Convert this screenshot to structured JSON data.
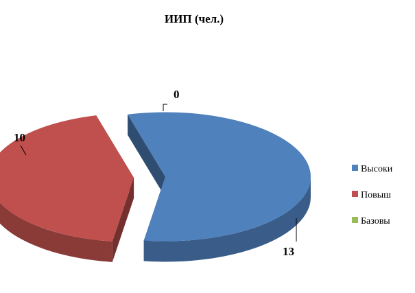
{
  "chart_data": {
    "type": "pie",
    "title": "ИИП (чел.)",
    "categories": [
      "Высокий",
      "Повышенный",
      "Базовый"
    ],
    "values": [
      13,
      10,
      0
    ],
    "data_labels": [
      "13",
      "10",
      "0"
    ],
    "colors": [
      "#4f81bd",
      "#c0504d",
      "#9bbb59"
    ],
    "style": "3d-exploded",
    "legend": {
      "position": "right",
      "entries": [
        "Высоки",
        "Повыш",
        "Базовы"
      ]
    }
  }
}
